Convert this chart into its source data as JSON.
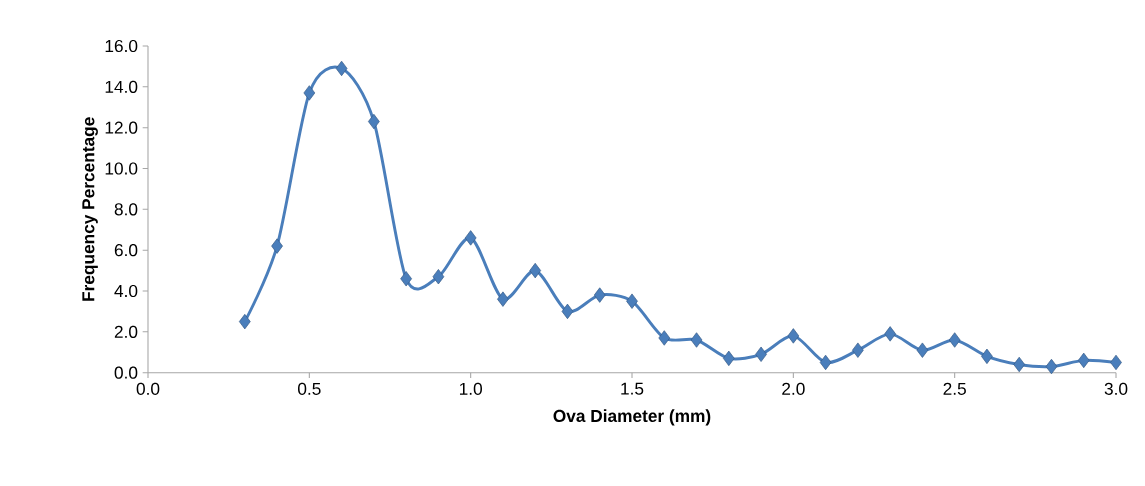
{
  "chart_data": {
    "type": "line",
    "xlabel": "Ova Diameter (mm)",
    "ylabel": "Frequency Percentage",
    "x": [
      0.3,
      0.4,
      0.5,
      0.6,
      0.7,
      0.8,
      0.9,
      1.0,
      1.1,
      1.2,
      1.3,
      1.4,
      1.5,
      1.6,
      1.7,
      1.8,
      1.9,
      2.0,
      2.1,
      2.2,
      2.3,
      2.4,
      2.5,
      2.6,
      2.7,
      2.8,
      2.9,
      3.0
    ],
    "series": [
      {
        "color": "#4a7ebb",
        "values": [
          2.5,
          6.2,
          13.7,
          14.9,
          12.3,
          4.6,
          4.7,
          6.6,
          3.6,
          5.0,
          3.0,
          3.8,
          3.5,
          1.7,
          1.6,
          0.7,
          0.9,
          1.8,
          0.5,
          1.1,
          1.9,
          1.1,
          1.6,
          0.8,
          0.4,
          0.3,
          0.6,
          0.5
        ]
      }
    ],
    "xlim": [
      0,
      3.0
    ],
    "ylim": [
      0,
      16.0
    ],
    "xticks": [
      {
        "value": 0,
        "label": "0.0"
      },
      {
        "value": 0.5,
        "label": "0.5"
      },
      {
        "value": 1.0,
        "label": "1.0"
      },
      {
        "value": 1.5,
        "label": "1.5"
      },
      {
        "value": 2.0,
        "label": "2.0"
      },
      {
        "value": 2.5,
        "label": "2.5"
      },
      {
        "value": 3.0,
        "label": "3.0"
      }
    ],
    "yticks": [
      {
        "value": 0,
        "label": "0.0"
      },
      {
        "value": 2,
        "label": "2.0"
      },
      {
        "value": 4,
        "label": "4.0"
      },
      {
        "value": 6,
        "label": "6.0"
      },
      {
        "value": 8,
        "label": "8.0"
      },
      {
        "value": 10,
        "label": "10.0"
      },
      {
        "value": 12,
        "label": "12.0"
      },
      {
        "value": 14,
        "label": "14.0"
      },
      {
        "value": 16,
        "label": "16.0"
      }
    ],
    "marker": "diamond",
    "line_style": "solid"
  }
}
